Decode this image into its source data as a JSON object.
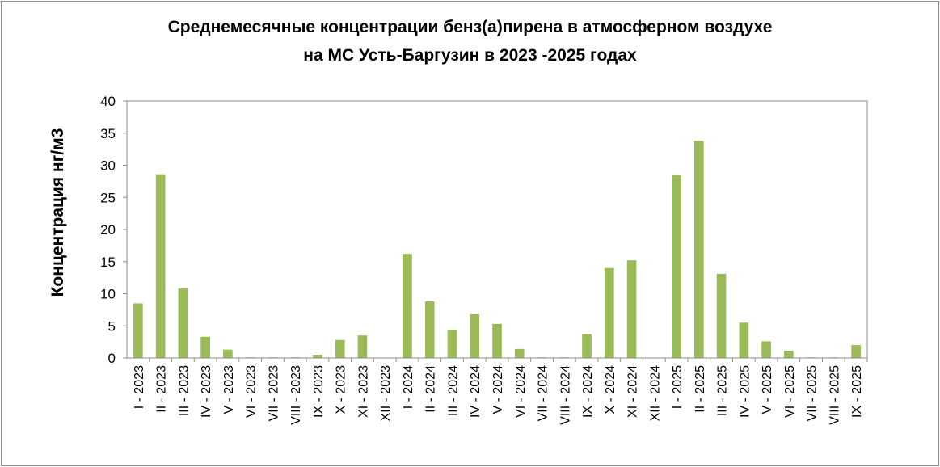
{
  "chart_data": {
    "type": "bar",
    "title_line1": "Среднемесячные концентрации бенз(а)пирена в атмосферном воздухе",
    "title_line2": "на МС Усть-Баргузин в  2023 -2025 годах",
    "xlabel": "",
    "ylabel": "Концентрация нг/м3",
    "ylim": [
      0,
      40
    ],
    "yticks": [
      0,
      5,
      10,
      15,
      20,
      25,
      30,
      35,
      40
    ],
    "grid": false,
    "legend": "none",
    "bar_color": "#9bbb59",
    "categories": [
      "I - 2023",
      "II - 2023",
      "III - 2023",
      "IV - 2023",
      "V - 2023",
      "VI - 2023",
      "VII - 2023",
      "VIII - 2023",
      "IX - 2023",
      "X - 2023",
      "XI - 2023",
      "XII - 2023",
      "I - 2024",
      "II - 2024",
      "III - 2024",
      "IV - 2024",
      "V - 2024",
      "VI - 2024",
      "VII - 2024",
      "VIII - 2024",
      "IX - 2024",
      "X - 2024",
      "XI - 2024",
      "XII - 2024",
      "I - 2025",
      "II - 2025",
      "III - 2025",
      "IV - 2025",
      "V - 2025",
      "VI - 2025",
      "VII - 2025",
      "VIII - 2025",
      "IX - 2025"
    ],
    "values": [
      8.5,
      28.6,
      10.8,
      3.3,
      1.3,
      0.1,
      0.1,
      0.1,
      0.5,
      2.8,
      3.5,
      0,
      16.2,
      8.8,
      4.4,
      6.8,
      5.3,
      1.4,
      0.1,
      0.1,
      3.7,
      14.0,
      15.2,
      0,
      28.5,
      33.8,
      13.1,
      5.5,
      2.6,
      1.1,
      0.1,
      0.1,
      2.0
    ]
  }
}
